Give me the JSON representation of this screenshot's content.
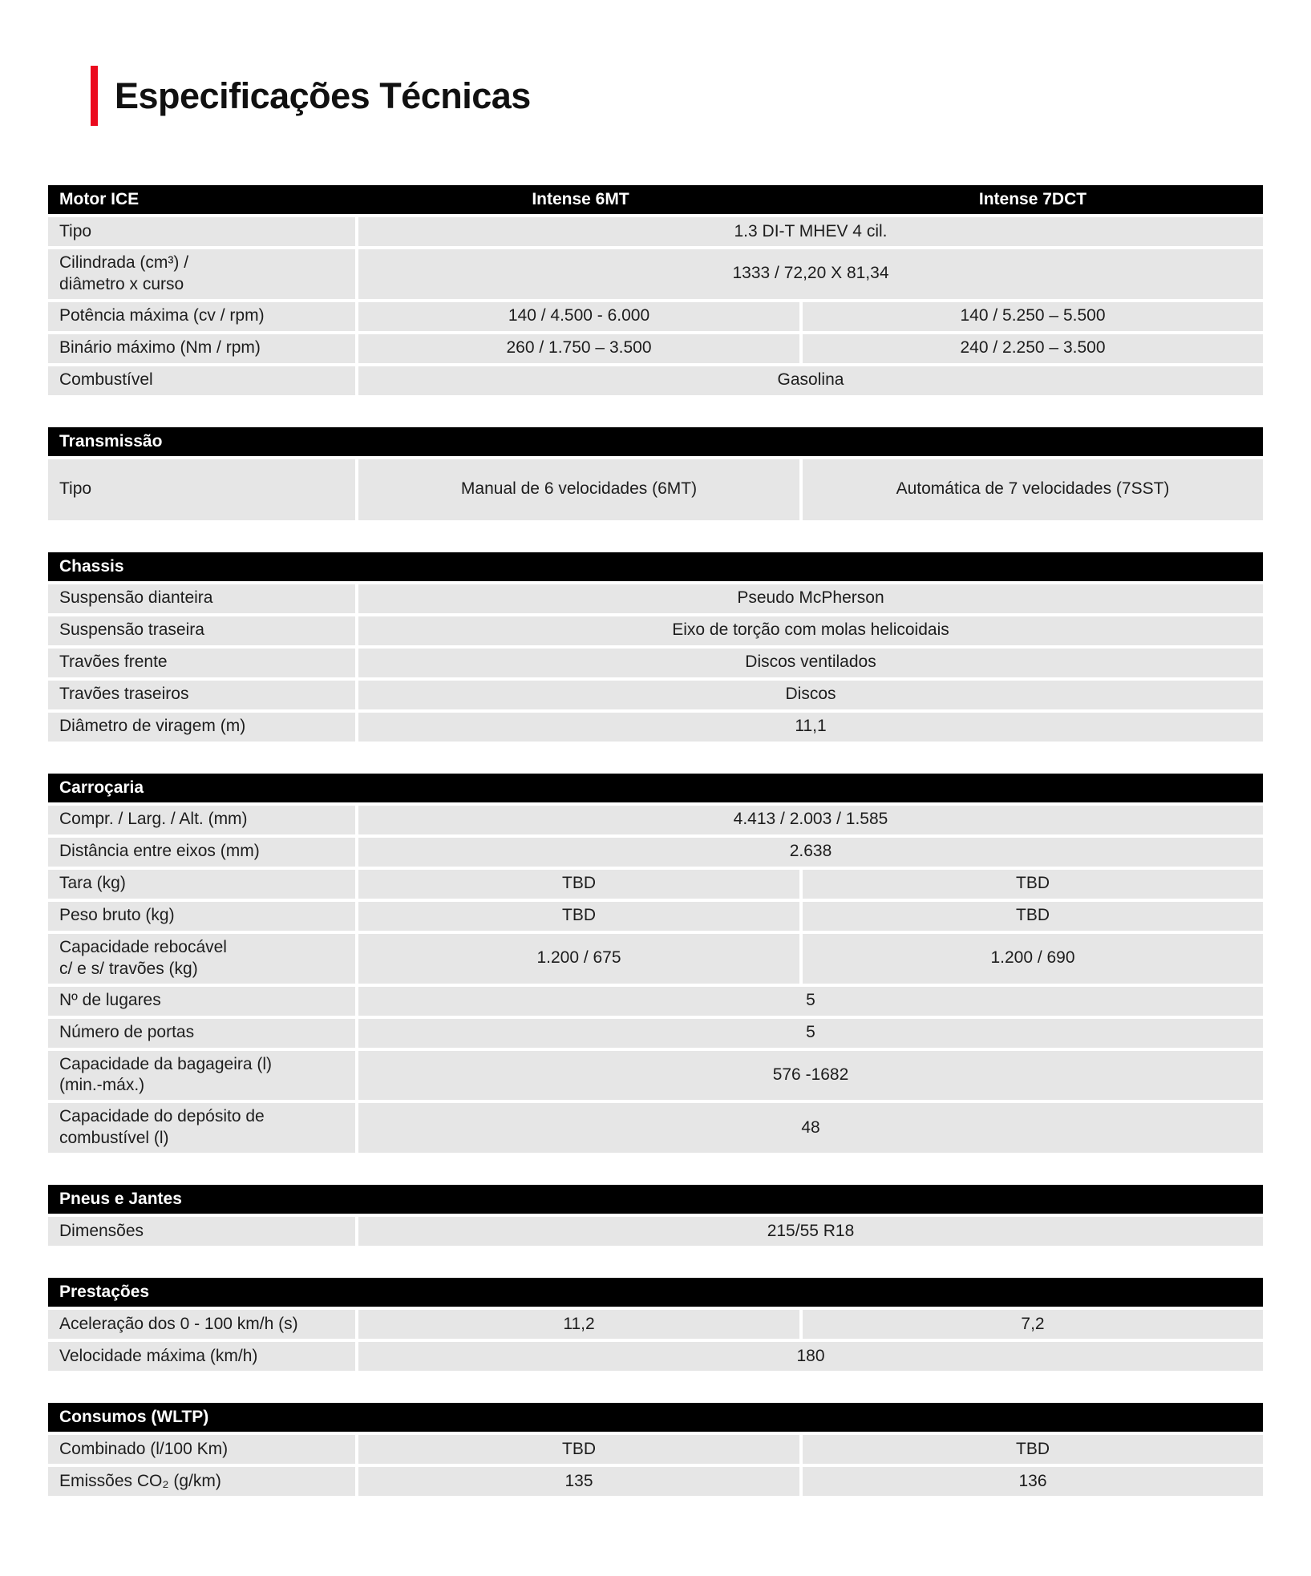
{
  "page": {
    "title": "Especificações Técnicas",
    "colors": {
      "accent_red": "#eb0a1e",
      "table_header_bg": "#000000",
      "table_header_text": "#ffffff",
      "row_bg": "#e6e6e6",
      "body_text": "#1d1d1d"
    }
  },
  "tables": [
    {
      "header": {
        "label": "Motor ICE",
        "col1": "Intense 6MT",
        "col2": "Intense 7DCT"
      },
      "rows": [
        {
          "label": "Tipo",
          "span": "1.3 DI-T MHEV 4 cil."
        },
        {
          "label": "Cilindrada (cm³) /\ndiâmetro x curso",
          "span": "1333 / 72,20 X 81,34"
        },
        {
          "label": "Potência máxima (cv / rpm)",
          "col1": "140 / 4.500 - 6.000",
          "col2": "140 / 5.250 – 5.500"
        },
        {
          "label": "Binário máximo (Nm / rpm)",
          "col1": "260 / 1.750 – 3.500",
          "col2": "240 / 2.250 – 3.500"
        },
        {
          "label": "Combustível",
          "span": "Gasolina"
        }
      ]
    },
    {
      "header": {
        "label": "Transmissão"
      },
      "rows": [
        {
          "label": "Tipo",
          "col1": "Manual de 6 velocidades (6MT)",
          "col2": "Automática de 7 velocidades (7SST)"
        }
      ]
    },
    {
      "header": {
        "label": "Chassis"
      },
      "rows": [
        {
          "label": "Suspensão dianteira",
          "span": "Pseudo McPherson"
        },
        {
          "label": "Suspensão traseira",
          "span": "Eixo de torção com molas helicoidais"
        },
        {
          "label": "Travões frente",
          "span": "Discos ventilados"
        },
        {
          "label": "Travões traseiros",
          "span": "Discos"
        },
        {
          "label": "Diâmetro de viragem (m)",
          "span": "11,1"
        }
      ]
    },
    {
      "header": {
        "label": "Carroçaria"
      },
      "rows": [
        {
          "label": "Compr. / Larg. / Alt. (mm)",
          "span": "4.413 / 2.003 / 1.585"
        },
        {
          "label": "Distância entre eixos (mm)",
          "span": "2.638"
        },
        {
          "label": "Tara (kg)",
          "col1": "TBD",
          "col2": "TBD"
        },
        {
          "label": "Peso bruto (kg)",
          "col1": "TBD",
          "col2": "TBD"
        },
        {
          "label": "Capacidade rebocável\nc/ e s/ travões (kg)",
          "col1": "1.200 / 675",
          "col2": "1.200 / 690"
        },
        {
          "label": "Nº de lugares",
          "span": "5"
        },
        {
          "label": "Número de portas",
          "span": "5"
        },
        {
          "label": "Capacidade da bagageira (l)\n(min.-máx.)",
          "span": "576 -1682"
        },
        {
          "label": "Capacidade do depósito de\ncombustível (l)",
          "span": "48"
        }
      ]
    },
    {
      "header": {
        "label": "Pneus e Jantes"
      },
      "rows": [
        {
          "label": "Dimensões",
          "span": "215/55 R18"
        }
      ]
    },
    {
      "header": {
        "label": "Prestações"
      },
      "rows": [
        {
          "label": "Aceleração dos 0 - 100 km/h (s)",
          "col1": "11,2",
          "col2": "7,2"
        },
        {
          "label": "Velocidade máxima (km/h)",
          "span": "180"
        }
      ]
    },
    {
      "header": {
        "label": "Consumos (WLTP)"
      },
      "rows": [
        {
          "label": "Combinado (l/100 Km)",
          "col1": "TBD",
          "col2": "TBD"
        },
        {
          "label": "Emissões CO₂ (g/km)",
          "col1": "135",
          "col2": "136"
        }
      ]
    }
  ]
}
